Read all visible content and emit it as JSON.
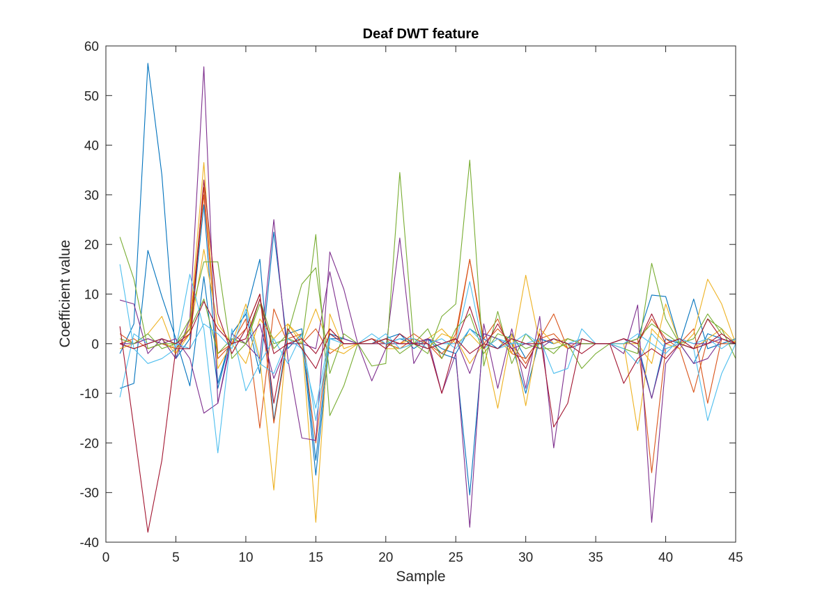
{
  "chart_data": {
    "type": "line",
    "title": "Deaf DWT feature",
    "xlabel": "Sample",
    "ylabel": "Coefficient value",
    "xlim": [
      0,
      45
    ],
    "ylim": [
      -40,
      60
    ],
    "xticks": [
      "0",
      "5",
      "10",
      "15",
      "20",
      "25",
      "30",
      "35",
      "40",
      "45"
    ],
    "yticks": [
      "-40",
      "-30",
      "-20",
      "-10",
      "0",
      "10",
      "20",
      "30",
      "40",
      "50",
      "60"
    ],
    "grid": false,
    "legend": "none",
    "x": [
      1,
      2,
      3,
      4,
      5,
      6,
      7,
      8,
      9,
      10,
      11,
      12,
      13,
      14,
      15,
      16,
      17,
      18,
      19,
      20,
      21,
      22,
      23,
      24,
      25,
      26,
      27,
      28,
      29,
      30,
      31,
      32,
      33,
      34,
      35,
      36,
      37,
      38,
      39,
      40,
      41,
      42,
      43,
      44,
      45
    ],
    "series": [
      {
        "color": "#0072BD",
        "values": [
          -2,
          4,
          56.5,
          34,
          -3,
          1,
          28,
          -8,
          2,
          6,
          -6,
          22.5,
          -1,
          2,
          -26.5,
          1,
          1,
          0,
          1,
          0,
          1,
          0,
          1,
          -2,
          -3,
          -30.5,
          2,
          1,
          0,
          -10,
          1,
          0,
          1,
          0,
          0,
          0,
          1,
          0,
          -11,
          1,
          0,
          9,
          -1,
          0,
          1
        ]
      },
      {
        "color": "#0072BD",
        "values": [
          -9,
          -8,
          18.8,
          9.5,
          1,
          -8.5,
          13.5,
          -9,
          2,
          6,
          17,
          -15.5,
          2,
          3,
          -23.5,
          2,
          1,
          0,
          0,
          1,
          2,
          -1,
          1,
          -1,
          -2,
          3,
          1,
          -1,
          2,
          -3,
          1,
          0,
          1,
          0,
          0,
          0,
          0,
          1,
          9.8,
          9.5,
          0,
          -4,
          2,
          1,
          0
        ]
      },
      {
        "color": "#D95319",
        "values": [
          0,
          1,
          -1,
          0,
          -1,
          2,
          30,
          -2,
          0,
          3,
          10,
          -16,
          1,
          2,
          -20,
          3,
          0,
          0,
          1,
          0,
          -1,
          1,
          0,
          -3,
          2,
          17,
          1,
          5,
          -2,
          -3,
          1,
          6,
          -1,
          1,
          0,
          0,
          0,
          1,
          -26,
          -1,
          0,
          3,
          -12,
          1,
          0
        ]
      },
      {
        "color": "#D95319",
        "values": [
          2,
          0,
          1,
          0,
          -1,
          3,
          31.5,
          -3,
          0,
          5,
          -17,
          7,
          0,
          0,
          3,
          -2,
          0,
          0,
          0,
          1,
          0,
          2,
          0,
          -2,
          1,
          17,
          0,
          3,
          0,
          -4,
          1,
          2,
          -1,
          0,
          0,
          0,
          1,
          0,
          5,
          1,
          -1,
          -9.8,
          1,
          0,
          0
        ]
      },
      {
        "color": "#EDB120",
        "values": [
          -1,
          0,
          2,
          5.5,
          -2,
          4,
          36.5,
          -5,
          0,
          8,
          -3,
          -29.5,
          4,
          1,
          -36,
          6,
          -1,
          0,
          0,
          0,
          0,
          1,
          -1,
          2,
          1,
          -4,
          0,
          -13,
          2,
          -12.5,
          3,
          0,
          1,
          0,
          0,
          0,
          0,
          -17.5,
          3,
          0,
          -1,
          2,
          13,
          8,
          0
        ]
      },
      {
        "color": "#EDB120",
        "values": [
          0,
          -1,
          0,
          1,
          -2,
          2,
          19,
          4,
          0,
          -4,
          5,
          1,
          4,
          0,
          7,
          -1,
          -2,
          0,
          1,
          -1,
          -1,
          0,
          1,
          3,
          0,
          2,
          -1,
          1,
          -2,
          13.8,
          0,
          1,
          -1,
          0,
          0,
          0,
          0,
          0,
          -4,
          8,
          0,
          -1,
          1,
          3,
          0
        ]
      },
      {
        "color": "#7E2F8E",
        "values": [
          8.8,
          8,
          -2,
          1,
          -3,
          5,
          55.8,
          -12,
          1,
          0,
          -3,
          25,
          -3,
          -19,
          -19.5,
          18.5,
          11,
          0,
          -7.5,
          -1,
          21.3,
          -4,
          1,
          -10,
          -2,
          -37,
          4,
          -9,
          3,
          -9,
          5.5,
          -21,
          -1,
          0,
          0,
          0,
          -2,
          7.8,
          -36,
          -4,
          0,
          -4,
          -3,
          1,
          0
        ]
      },
      {
        "color": "#7E2F8E",
        "values": [
          0,
          0,
          1,
          0,
          1,
          -3,
          -14,
          -12,
          2,
          0,
          4,
          -7,
          0,
          0,
          -1,
          14.5,
          1,
          0,
          0,
          0,
          0,
          0,
          1,
          0,
          1,
          -6,
          2,
          1,
          -1,
          0,
          -1,
          1,
          0,
          0,
          0,
          0,
          1,
          -1,
          -11,
          0,
          1,
          0,
          0,
          1,
          0
        ]
      },
      {
        "color": "#77AC30",
        "values": [
          21.5,
          13,
          -1,
          0,
          0,
          5,
          16.5,
          16.5,
          -3,
          0,
          9,
          0,
          1,
          0,
          22,
          -14.5,
          -8.5,
          0,
          -4.5,
          -4,
          34.5,
          0,
          -2,
          5.5,
          8,
          37,
          -4.5,
          6.5,
          -4,
          2,
          -1,
          -1,
          0,
          -5,
          -2,
          0,
          -1,
          -2,
          16.2,
          5,
          0,
          -1,
          5,
          3,
          -3
        ]
      },
      {
        "color": "#77AC30",
        "values": [
          1,
          0,
          2,
          -1,
          0,
          3,
          9,
          -2,
          1,
          0,
          8,
          -1,
          2,
          12,
          15.3,
          -6,
          2,
          0,
          0,
          1,
          -2,
          0,
          3,
          -3,
          3,
          6,
          -2,
          2,
          1,
          -1,
          0,
          -2,
          1,
          0,
          0,
          0,
          0,
          1,
          4,
          2,
          0,
          1,
          6,
          2,
          0
        ]
      },
      {
        "color": "#4DBEEE",
        "values": [
          16,
          -1,
          -4,
          -3,
          -1,
          14,
          3,
          -22,
          3,
          -9.5,
          -4,
          1,
          -4,
          2,
          -15.5,
          1,
          0,
          0,
          2,
          0,
          1,
          1,
          -1,
          0,
          0,
          12.5,
          -1,
          1,
          0,
          0,
          1,
          -6,
          -5,
          3,
          0,
          0,
          -1,
          -4,
          2,
          -1,
          0,
          -1,
          -15.5,
          -6,
          0
        ]
      },
      {
        "color": "#4DBEEE",
        "values": [
          -10.8,
          2,
          0,
          1,
          0,
          -1,
          4,
          2,
          -1,
          7,
          -4,
          -6,
          1,
          -1,
          -13,
          2,
          0,
          0,
          0,
          2,
          -1,
          0,
          0,
          1,
          -1,
          3,
          0,
          -1,
          0,
          2,
          0,
          1,
          0,
          1,
          0,
          0,
          0,
          2,
          0,
          -2,
          1,
          0,
          1,
          -1,
          1
        ]
      },
      {
        "color": "#A2142F",
        "values": [
          3.5,
          -17,
          -38,
          -23.5,
          -1,
          -1,
          33,
          6,
          -2,
          3,
          10,
          -12,
          3,
          -1,
          -5,
          2,
          0,
          0,
          0,
          1,
          0,
          0,
          0,
          -10,
          0,
          7.5,
          -1,
          4,
          -1,
          -5,
          2,
          -16.8,
          -12,
          1,
          0,
          0,
          -8,
          -3,
          -1,
          -3,
          0,
          -1,
          5,
          1,
          0
        ]
      },
      {
        "color": "#A2142F",
        "values": [
          0,
          -1,
          0,
          1,
          0,
          2,
          8.5,
          3,
          0,
          1,
          9,
          -2,
          0,
          1,
          -2,
          3,
          0,
          0,
          1,
          -1,
          2,
          0,
          -1,
          0,
          1,
          -2,
          0,
          -1,
          1,
          0,
          0,
          1,
          0,
          -2,
          0,
          0,
          1,
          0,
          6,
          0,
          1,
          -1,
          0,
          2,
          0
        ]
      }
    ]
  }
}
